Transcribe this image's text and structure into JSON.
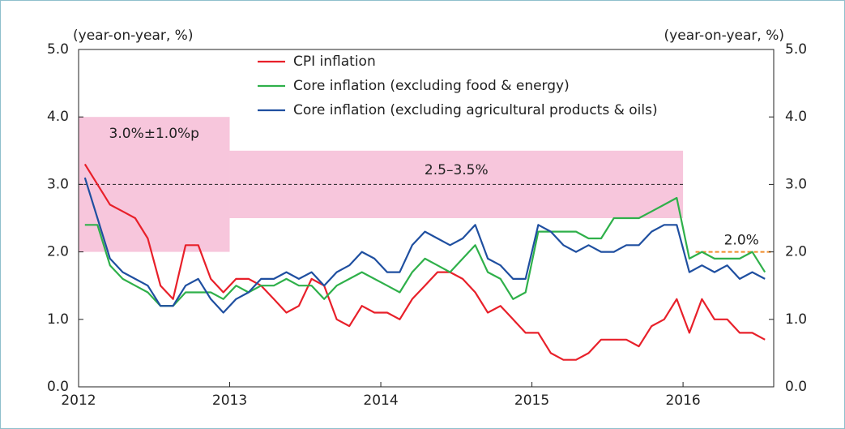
{
  "chart_data": {
    "type": "line",
    "y_axis_label": "(year-on-year, %)",
    "y2_axis_label": "(year-on-year, %)",
    "x": [
      2012.042,
      2012.125,
      2012.208,
      2012.292,
      2012.375,
      2012.458,
      2012.542,
      2012.625,
      2012.708,
      2012.792,
      2012.875,
      2012.958,
      2013.042,
      2013.125,
      2013.208,
      2013.292,
      2013.375,
      2013.458,
      2013.542,
      2013.625,
      2013.708,
      2013.792,
      2013.875,
      2013.958,
      2014.042,
      2014.125,
      2014.208,
      2014.292,
      2014.375,
      2014.458,
      2014.542,
      2014.625,
      2014.708,
      2014.792,
      2014.875,
      2014.958,
      2015.042,
      2015.125,
      2015.208,
      2015.292,
      2015.375,
      2015.458,
      2015.542,
      2015.625,
      2015.708,
      2015.792,
      2015.875,
      2015.958,
      2016.042,
      2016.125,
      2016.208,
      2016.292,
      2016.375,
      2016.458,
      2016.542
    ],
    "series": [
      {
        "name": "CPI inflation",
        "color": "#e8202a",
        "values": [
          3.3,
          3.0,
          2.7,
          2.6,
          2.5,
          2.2,
          1.5,
          1.3,
          2.1,
          2.1,
          1.6,
          1.4,
          1.6,
          1.6,
          1.5,
          1.3,
          1.1,
          1.2,
          1.6,
          1.5,
          1.0,
          0.9,
          1.2,
          1.1,
          1.1,
          1.0,
          1.3,
          1.5,
          1.7,
          1.7,
          1.6,
          1.4,
          1.1,
          1.2,
          1.0,
          0.8,
          0.8,
          0.5,
          0.4,
          0.4,
          0.5,
          0.7,
          0.7,
          0.7,
          0.6,
          0.9,
          1.0,
          1.3,
          0.8,
          1.3,
          1.0,
          1.0,
          0.8,
          0.8,
          0.7
        ]
      },
      {
        "name": "Core inflation (excluding food & energy)",
        "color": "#2fb04a",
        "values": [
          2.4,
          2.4,
          1.8,
          1.6,
          1.5,
          1.4,
          1.2,
          1.2,
          1.4,
          1.4,
          1.4,
          1.3,
          1.5,
          1.4,
          1.5,
          1.5,
          1.6,
          1.5,
          1.5,
          1.3,
          1.5,
          1.6,
          1.7,
          1.6,
          1.5,
          1.4,
          1.7,
          1.9,
          1.8,
          1.7,
          1.9,
          2.1,
          1.7,
          1.6,
          1.3,
          1.4,
          2.3,
          2.3,
          2.3,
          2.3,
          2.2,
          2.2,
          2.5,
          2.5,
          2.5,
          2.6,
          2.7,
          2.8,
          1.9,
          2.0,
          1.9,
          1.9,
          1.9,
          2.0,
          1.7
        ]
      },
      {
        "name": "Core inflation (excluding agricultural products & oils)",
        "color": "#1f4fa0",
        "values": [
          3.1,
          2.5,
          1.9,
          1.7,
          1.6,
          1.5,
          1.2,
          1.2,
          1.5,
          1.6,
          1.3,
          1.1,
          1.3,
          1.4,
          1.6,
          1.6,
          1.7,
          1.6,
          1.7,
          1.5,
          1.7,
          1.8,
          2.0,
          1.9,
          1.7,
          1.7,
          2.1,
          2.3,
          2.2,
          2.1,
          2.2,
          2.4,
          1.9,
          1.8,
          1.6,
          1.6,
          2.4,
          2.3,
          2.1,
          2.0,
          2.1,
          2.0,
          2.0,
          2.1,
          2.1,
          2.3,
          2.4,
          2.4,
          1.7,
          1.8,
          1.7,
          1.8,
          1.6,
          1.7,
          1.6
        ]
      }
    ],
    "target_bands": [
      {
        "label": "3.0%±1.0%p",
        "x": [
          2012,
          2013
        ],
        "range": [
          2.0,
          4.0
        ],
        "color": "#f7c6dc"
      },
      {
        "label": "2.5–3.5%",
        "x": [
          2013,
          2016
        ],
        "range": [
          2.5,
          3.5
        ],
        "color": "#f7c6dc"
      }
    ],
    "target_lines": [
      {
        "x": [
          2012,
          2016
        ],
        "y": 3.0,
        "color": "#222222"
      },
      {
        "label": "2.0%",
        "x": [
          2016.083,
          2016.583
        ],
        "y": 2.0,
        "color": "#f08c2a"
      }
    ],
    "xlim": [
      2012,
      2016.6
    ],
    "xticks": [
      2012,
      2013,
      2014,
      2015,
      2016
    ],
    "ylim": [
      0,
      5
    ],
    "yticks": [
      {
        "value": 0,
        "label": "0.0"
      },
      {
        "value": 1,
        "label": "1.0"
      },
      {
        "value": 2,
        "label": "2.0"
      },
      {
        "value": 3,
        "label": "3.0"
      },
      {
        "value": 4,
        "label": "4.0"
      },
      {
        "value": 5,
        "label": "5.0"
      }
    ],
    "y2lim": [
      0,
      5
    ],
    "y2ticks": [
      {
        "value": 0,
        "label": "0.0"
      },
      {
        "value": 1,
        "label": "1.0"
      },
      {
        "value": 2,
        "label": "2.0"
      },
      {
        "value": 3,
        "label": "3.0"
      },
      {
        "value": 4,
        "label": "4.0"
      },
      {
        "value": 5,
        "label": "5.0"
      }
    ],
    "grid": false,
    "legend": "top"
  }
}
